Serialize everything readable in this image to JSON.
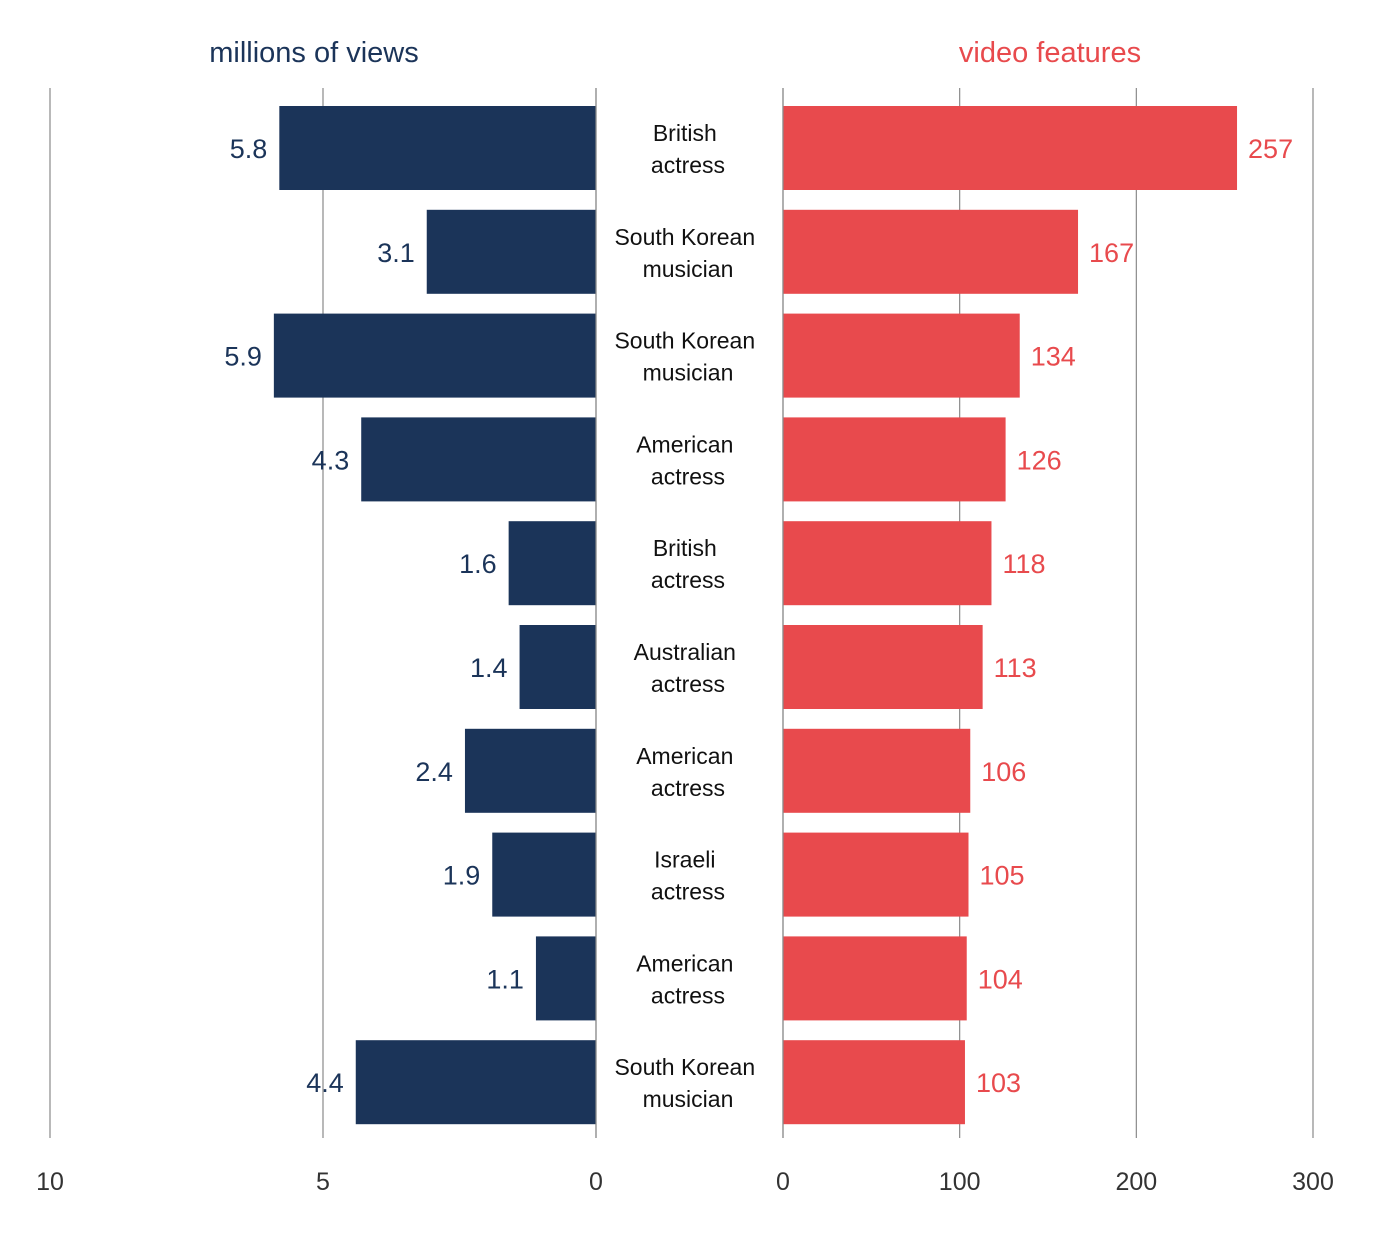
{
  "chart_data": {
    "type": "bar",
    "layout": "back-to-back horizontal bars",
    "categories": [
      "British actress",
      "South Korean musician",
      "South Korean musician",
      "American actress",
      "British actress",
      "Australian actress",
      "American actress",
      "Israeli actress",
      "American actress",
      "South Korean musician"
    ],
    "series": [
      {
        "name": "millions of views",
        "color": "#1b3459",
        "direction": "left",
        "values": [
          5.8,
          3.1,
          5.9,
          4.3,
          1.6,
          1.4,
          2.4,
          1.9,
          1.1,
          4.4
        ],
        "value_labels": [
          "5.8",
          "3.1",
          "5.9",
          "4.3",
          "1.6",
          "1.4",
          "2.4",
          "1.9",
          "1.1",
          "4.4"
        ],
        "xlim": [
          0,
          10
        ],
        "ticks": [
          10,
          5,
          0
        ]
      },
      {
        "name": "video features",
        "color": "#e84a4d",
        "direction": "right",
        "values": [
          257,
          167,
          134,
          126,
          118,
          113,
          106,
          105,
          104,
          103
        ],
        "value_labels": [
          "257",
          "167",
          "134",
          "126",
          "118",
          "113",
          "106",
          "105",
          "104",
          "103"
        ],
        "xlim": [
          0,
          300
        ],
        "ticks": [
          0,
          100,
          200,
          300
        ]
      }
    ],
    "grid": true,
    "legend": "titles above each panel"
  }
}
